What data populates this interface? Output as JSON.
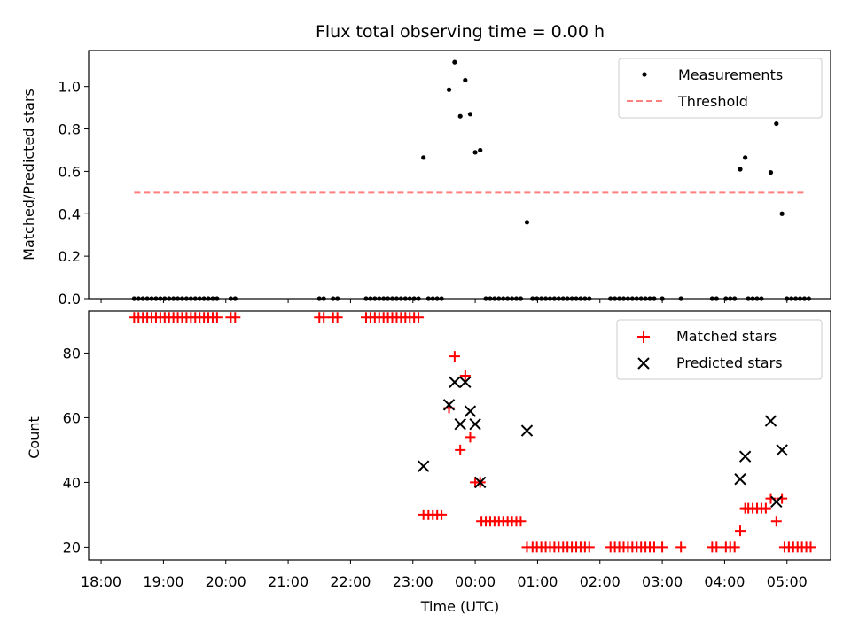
{
  "chart_data": [
    {
      "type": "scatter",
      "title": "Flux total observing time = 0.00 h",
      "xlabel": "",
      "ylabel": "Matched/Predicted stars",
      "x_unit": "hours after 18:00 UTC",
      "xlim": [
        -0.2,
        11.7
      ],
      "ylim": [
        0,
        1.17
      ],
      "yticks": [
        0.0,
        0.2,
        0.4,
        0.6,
        0.8,
        1.0
      ],
      "ytick_labels": [
        "0.0",
        "0.2",
        "0.4",
        "0.6",
        "0.8",
        "1.0"
      ],
      "legend": {
        "position": "upper right",
        "entries": [
          "Measurements",
          "Threshold"
        ]
      },
      "series": [
        {
          "name": "Measurements",
          "color": "#000000",
          "points": [
            [
              0.53,
              0
            ],
            [
              0.6,
              0
            ],
            [
              0.67,
              0
            ],
            [
              0.74,
              0
            ],
            [
              0.81,
              0
            ],
            [
              0.88,
              0
            ],
            [
              0.95,
              0
            ],
            [
              1.02,
              0
            ],
            [
              1.09,
              0
            ],
            [
              1.16,
              0
            ],
            [
              1.23,
              0
            ],
            [
              1.3,
              0
            ],
            [
              1.37,
              0
            ],
            [
              1.44,
              0
            ],
            [
              1.51,
              0
            ],
            [
              1.58,
              0
            ],
            [
              1.65,
              0
            ],
            [
              1.72,
              0
            ],
            [
              1.79,
              0
            ],
            [
              1.86,
              0
            ],
            [
              2.08,
              0
            ],
            [
              2.15,
              0
            ],
            [
              3.5,
              0
            ],
            [
              3.57,
              0
            ],
            [
              3.72,
              0
            ],
            [
              3.79,
              0
            ],
            [
              4.25,
              0
            ],
            [
              4.32,
              0
            ],
            [
              4.39,
              0
            ],
            [
              4.46,
              0
            ],
            [
              4.53,
              0
            ],
            [
              4.6,
              0
            ],
            [
              4.67,
              0
            ],
            [
              4.74,
              0
            ],
            [
              4.81,
              0
            ],
            [
              4.88,
              0
            ],
            [
              4.95,
              0
            ],
            [
              5.02,
              0
            ],
            [
              5.09,
              0
            ],
            [
              5.17,
              0.665
            ],
            [
              5.25,
              0
            ],
            [
              5.32,
              0
            ],
            [
              5.39,
              0
            ],
            [
              5.46,
              0
            ],
            [
              5.58,
              0.985
            ],
            [
              5.67,
              1.115
            ],
            [
              5.76,
              0.86
            ],
            [
              5.84,
              1.03
            ],
            [
              5.92,
              0.87
            ],
            [
              6.0,
              0.69
            ],
            [
              6.08,
              0.7
            ],
            [
              6.17,
              0
            ],
            [
              6.24,
              0
            ],
            [
              6.31,
              0
            ],
            [
              6.38,
              0
            ],
            [
              6.45,
              0
            ],
            [
              6.52,
              0
            ],
            [
              6.59,
              0
            ],
            [
              6.66,
              0
            ],
            [
              6.73,
              0
            ],
            [
              6.83,
              0.36
            ],
            [
              6.92,
              0
            ],
            [
              6.99,
              0
            ],
            [
              7.06,
              0
            ],
            [
              7.13,
              0
            ],
            [
              7.2,
              0
            ],
            [
              7.27,
              0
            ],
            [
              7.34,
              0
            ],
            [
              7.41,
              0
            ],
            [
              7.48,
              0
            ],
            [
              7.55,
              0
            ],
            [
              7.62,
              0
            ],
            [
              7.69,
              0
            ],
            [
              7.76,
              0
            ],
            [
              7.83,
              0
            ],
            [
              8.17,
              0
            ],
            [
              8.24,
              0
            ],
            [
              8.31,
              0
            ],
            [
              8.38,
              0
            ],
            [
              8.45,
              0
            ],
            [
              8.52,
              0
            ],
            [
              8.59,
              0
            ],
            [
              8.66,
              0
            ],
            [
              8.73,
              0
            ],
            [
              8.8,
              0
            ],
            [
              8.87,
              0
            ],
            [
              9.0,
              0
            ],
            [
              9.3,
              0
            ],
            [
              9.8,
              0
            ],
            [
              9.87,
              0
            ],
            [
              10.02,
              0
            ],
            [
              10.09,
              0
            ],
            [
              10.16,
              0
            ],
            [
              10.25,
              0.61
            ],
            [
              10.33,
              0.665
            ],
            [
              10.38,
              0
            ],
            [
              10.45,
              0
            ],
            [
              10.52,
              0
            ],
            [
              10.59,
              0
            ],
            [
              10.74,
              0.595
            ],
            [
              10.83,
              0.825
            ],
            [
              10.92,
              0.4
            ],
            [
              11.0,
              0
            ],
            [
              11.07,
              0
            ],
            [
              11.14,
              0
            ],
            [
              11.21,
              0
            ],
            [
              11.28,
              0
            ],
            [
              11.35,
              0
            ]
          ]
        },
        {
          "name": "Threshold",
          "color": "#ff7f7f",
          "style": "dashed",
          "x": [
            0.53,
            11.28
          ],
          "y": [
            0.5,
            0.5
          ]
        }
      ]
    },
    {
      "type": "scatter",
      "xlabel": "Time (UTC)",
      "ylabel": "Count",
      "x_unit": "hours after 18:00 UTC",
      "xlim": [
        -0.2,
        11.7
      ],
      "ylim": [
        16,
        93
      ],
      "xticks": [
        0,
        1,
        2,
        3,
        4,
        5,
        6,
        7,
        8,
        9,
        10,
        11
      ],
      "xtick_labels": [
        "18:00",
        "19:00",
        "20:00",
        "21:00",
        "22:00",
        "23:00",
        "00:00",
        "01:00",
        "02:00",
        "03:00",
        "04:00",
        "05:00"
      ],
      "yticks": [
        20,
        40,
        60,
        80
      ],
      "ytick_labels": [
        "20",
        "40",
        "60",
        "80"
      ],
      "legend": {
        "position": "upper right",
        "entries": [
          "Matched stars",
          "Predicted stars"
        ]
      },
      "series": [
        {
          "name": "Matched stars",
          "marker": "+",
          "color": "#ff0000",
          "points": [
            [
              0.53,
              91
            ],
            [
              0.6,
              91
            ],
            [
              0.67,
              91
            ],
            [
              0.74,
              91
            ],
            [
              0.81,
              91
            ],
            [
              0.88,
              91
            ],
            [
              0.95,
              91
            ],
            [
              1.02,
              91
            ],
            [
              1.09,
              91
            ],
            [
              1.16,
              91
            ],
            [
              1.23,
              91
            ],
            [
              1.3,
              91
            ],
            [
              1.37,
              91
            ],
            [
              1.44,
              91
            ],
            [
              1.51,
              91
            ],
            [
              1.58,
              91
            ],
            [
              1.65,
              91
            ],
            [
              1.72,
              91
            ],
            [
              1.79,
              91
            ],
            [
              1.86,
              91
            ],
            [
              2.08,
              91
            ],
            [
              2.15,
              91
            ],
            [
              3.5,
              91
            ],
            [
              3.57,
              91
            ],
            [
              3.72,
              91
            ],
            [
              3.79,
              91
            ],
            [
              4.25,
              91
            ],
            [
              4.32,
              91
            ],
            [
              4.39,
              91
            ],
            [
              4.46,
              91
            ],
            [
              4.53,
              91
            ],
            [
              4.6,
              91
            ],
            [
              4.67,
              91
            ],
            [
              4.74,
              91
            ],
            [
              4.81,
              91
            ],
            [
              4.88,
              91
            ],
            [
              4.95,
              91
            ],
            [
              5.02,
              91
            ],
            [
              5.09,
              91
            ],
            [
              5.17,
              30
            ],
            [
              5.25,
              30
            ],
            [
              5.32,
              30
            ],
            [
              5.39,
              30
            ],
            [
              5.46,
              30
            ],
            [
              5.58,
              63
            ],
            [
              5.67,
              79
            ],
            [
              5.76,
              50
            ],
            [
              5.84,
              73
            ],
            [
              5.92,
              54
            ],
            [
              6.0,
              40
            ],
            [
              6.08,
              40
            ],
            [
              6.1,
              28
            ],
            [
              6.17,
              28
            ],
            [
              6.24,
              28
            ],
            [
              6.31,
              28
            ],
            [
              6.38,
              28
            ],
            [
              6.45,
              28
            ],
            [
              6.52,
              28
            ],
            [
              6.59,
              28
            ],
            [
              6.66,
              28
            ],
            [
              6.73,
              28
            ],
            [
              6.83,
              20
            ],
            [
              6.92,
              20
            ],
            [
              6.99,
              20
            ],
            [
              7.06,
              20
            ],
            [
              7.13,
              20
            ],
            [
              7.2,
              20
            ],
            [
              7.27,
              20
            ],
            [
              7.34,
              20
            ],
            [
              7.41,
              20
            ],
            [
              7.48,
              20
            ],
            [
              7.55,
              20
            ],
            [
              7.62,
              20
            ],
            [
              7.69,
              20
            ],
            [
              7.76,
              20
            ],
            [
              7.83,
              20
            ],
            [
              8.17,
              20
            ],
            [
              8.24,
              20
            ],
            [
              8.31,
              20
            ],
            [
              8.38,
              20
            ],
            [
              8.45,
              20
            ],
            [
              8.52,
              20
            ],
            [
              8.59,
              20
            ],
            [
              8.66,
              20
            ],
            [
              8.73,
              20
            ],
            [
              8.8,
              20
            ],
            [
              8.87,
              20
            ],
            [
              9.0,
              20
            ],
            [
              9.3,
              20
            ],
            [
              9.8,
              20
            ],
            [
              9.87,
              20
            ],
            [
              10.02,
              20
            ],
            [
              10.09,
              20
            ],
            [
              10.16,
              20
            ],
            [
              10.25,
              25
            ],
            [
              10.33,
              32
            ],
            [
              10.38,
              32
            ],
            [
              10.45,
              32
            ],
            [
              10.52,
              32
            ],
            [
              10.59,
              32
            ],
            [
              10.66,
              32
            ],
            [
              10.74,
              35
            ],
            [
              10.83,
              28
            ],
            [
              10.92,
              35
            ],
            [
              10.96,
              20
            ],
            [
              11.03,
              20
            ],
            [
              11.1,
              20
            ],
            [
              11.17,
              20
            ],
            [
              11.24,
              20
            ],
            [
              11.31,
              20
            ],
            [
              11.38,
              20
            ]
          ]
        },
        {
          "name": "Predicted stars",
          "marker": "x",
          "color": "#000000",
          "points": [
            [
              5.17,
              45
            ],
            [
              5.58,
              64
            ],
            [
              5.67,
              71
            ],
            [
              5.76,
              58
            ],
            [
              5.84,
              71
            ],
            [
              5.92,
              62
            ],
            [
              6.0,
              58
            ],
            [
              6.08,
              40
            ],
            [
              6.83,
              56
            ],
            [
              10.25,
              41
            ],
            [
              10.33,
              48
            ],
            [
              10.74,
              59
            ],
            [
              10.83,
              34
            ],
            [
              10.92,
              50
            ]
          ]
        }
      ]
    }
  ]
}
